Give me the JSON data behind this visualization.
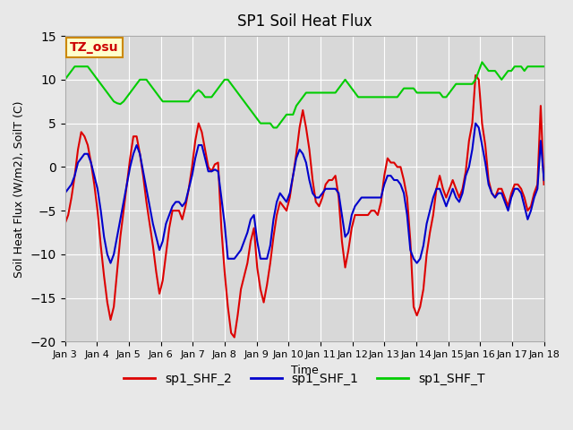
{
  "title": "SP1 Soil Heat Flux",
  "xlabel": "Time",
  "ylabel": "Soil Heat Flux (W/m2), SoilT (C)",
  "ylim": [
    -20,
    15
  ],
  "xlim": [
    0,
    15
  ],
  "bg_color": "#e8e8e8",
  "plot_bg_color": "#d8d8d8",
  "grid_color": "#ffffff",
  "tz_label": "TZ_osu",
  "tz_bg": "#ffffcc",
  "tz_border": "#cc8800",
  "tz_text_color": "#cc0000",
  "x_tick_labels": [
    "Jan 3",
    "Jan 4",
    "Jan 5",
    "Jan 6",
    "Jan 7",
    "Jan 8",
    "Jan 9",
    "Jan 10",
    "Jan 11",
    "Jan 12",
    "Jan 13",
    "Jan 14",
    "Jan 15",
    "Jan 16",
    "Jan 17",
    "Jan 18"
  ],
  "colors": {
    "sp1_SHF_2": "#dd0000",
    "sp1_SHF_1": "#0000cc",
    "sp1_SHF_T": "#00cc00"
  },
  "sp1_SHF_2_y": [
    -6.5,
    -5.5,
    -3.5,
    -1.0,
    2.0,
    4.0,
    3.5,
    2.5,
    0.5,
    -2.0,
    -5.0,
    -9.0,
    -12.5,
    -15.5,
    -17.5,
    -16.0,
    -12.0,
    -8.0,
    -5.0,
    -2.0,
    1.0,
    3.5,
    3.5,
    1.5,
    -1.0,
    -4.0,
    -6.5,
    -9.0,
    -12.0,
    -14.5,
    -13.0,
    -10.0,
    -7.0,
    -5.0,
    -5.0,
    -5.0,
    -6.0,
    -4.5,
    -2.5,
    0.0,
    3.0,
    5.0,
    4.0,
    2.0,
    0.0,
    -0.5,
    0.3,
    0.5,
    -7.0,
    -12.0,
    -16.0,
    -19.0,
    -19.5,
    -17.0,
    -14.0,
    -12.5,
    -11.0,
    -8.5,
    -7.0,
    -11.5,
    -14.0,
    -15.5,
    -13.5,
    -11.0,
    -8.0,
    -5.5,
    -4.0,
    -4.5,
    -5.0,
    -3.5,
    -1.0,
    1.5,
    4.5,
    6.5,
    4.5,
    2.0,
    -1.5,
    -4.0,
    -4.5,
    -3.5,
    -2.0,
    -1.5,
    -1.5,
    -1.0,
    -3.5,
    -8.5,
    -11.5,
    -9.5,
    -7.0,
    -5.5,
    -5.5,
    -5.5,
    -5.5,
    -5.5,
    -5.0,
    -5.0,
    -5.5,
    -4.0,
    -1.0,
    1.0,
    0.5,
    0.5,
    0.0,
    0.0,
    -1.5,
    -3.5,
    -8.5,
    -16.0,
    -17.0,
    -16.0,
    -14.0,
    -10.0,
    -7.5,
    -5.5,
    -2.5,
    -1.0,
    -2.5,
    -3.5,
    -2.5,
    -1.5,
    -2.5,
    -3.5,
    -2.5,
    -0.5,
    3.0,
    5.0,
    10.5,
    10.0,
    5.0,
    2.5,
    -1.5,
    -3.0,
    -3.5,
    -2.5,
    -2.5,
    -3.5,
    -4.5,
    -3.0,
    -2.0,
    -2.0,
    -2.5,
    -3.5,
    -5.0,
    -4.5,
    -3.0,
    -2.0,
    7.0,
    -2.0
  ],
  "sp1_SHF_1_y": [
    -3.0,
    -2.5,
    -2.0,
    -1.0,
    0.5,
    1.0,
    1.5,
    1.5,
    0.5,
    -1.0,
    -2.5,
    -5.0,
    -8.0,
    -10.0,
    -11.0,
    -10.0,
    -8.0,
    -6.0,
    -4.0,
    -2.0,
    0.0,
    1.5,
    2.5,
    1.5,
    -0.5,
    -2.5,
    -4.5,
    -6.5,
    -8.0,
    -9.5,
    -8.5,
    -6.5,
    -5.5,
    -4.5,
    -4.0,
    -4.0,
    -4.5,
    -4.0,
    -2.5,
    -1.0,
    1.0,
    2.5,
    2.5,
    1.0,
    -0.5,
    -0.5,
    -0.3,
    -0.5,
    -3.5,
    -6.5,
    -10.5,
    -10.5,
    -10.5,
    -10.0,
    -9.5,
    -8.5,
    -7.5,
    -6.0,
    -5.5,
    -8.5,
    -10.5,
    -10.5,
    -10.5,
    -9.0,
    -6.0,
    -4.0,
    -3.0,
    -3.5,
    -4.0,
    -3.0,
    -1.0,
    1.0,
    2.0,
    1.5,
    0.5,
    -1.5,
    -3.0,
    -3.5,
    -3.5,
    -3.0,
    -2.5,
    -2.5,
    -2.5,
    -2.5,
    -3.0,
    -5.5,
    -8.0,
    -7.5,
    -5.5,
    -4.5,
    -4.0,
    -3.5,
    -3.5,
    -3.5,
    -3.5,
    -3.5,
    -3.5,
    -3.5,
    -2.0,
    -1.0,
    -1.0,
    -1.5,
    -1.5,
    -2.0,
    -3.0,
    -5.5,
    -9.5,
    -10.5,
    -11.0,
    -10.5,
    -9.0,
    -6.5,
    -5.0,
    -3.5,
    -2.5,
    -2.5,
    -3.5,
    -4.5,
    -3.5,
    -2.5,
    -3.5,
    -4.0,
    -3.0,
    -1.0,
    0.0,
    2.0,
    5.0,
    4.5,
    2.5,
    0.5,
    -2.0,
    -3.0,
    -3.5,
    -3.0,
    -3.0,
    -4.0,
    -5.0,
    -3.5,
    -2.5,
    -2.5,
    -3.0,
    -4.5,
    -6.0,
    -5.0,
    -3.5,
    -2.5,
    3.0,
    -1.5
  ],
  "sp1_SHF_T_y": [
    10.0,
    10.5,
    11.0,
    11.5,
    11.5,
    11.5,
    11.5,
    11.5,
    11.0,
    10.5,
    10.0,
    9.5,
    9.0,
    8.5,
    8.0,
    7.5,
    7.3,
    7.2,
    7.5,
    8.0,
    8.5,
    9.0,
    9.5,
    10.0,
    10.0,
    10.0,
    9.5,
    9.0,
    8.5,
    8.0,
    7.5,
    7.5,
    7.5,
    7.5,
    7.5,
    7.5,
    7.5,
    7.5,
    7.5,
    8.0,
    8.5,
    8.8,
    8.5,
    8.0,
    8.0,
    8.0,
    8.5,
    9.0,
    9.5,
    10.0,
    10.0,
    9.5,
    9.0,
    8.5,
    8.0,
    7.5,
    7.0,
    6.5,
    6.0,
    5.5,
    5.0,
    5.0,
    5.0,
    5.0,
    4.5,
    4.5,
    5.0,
    5.5,
    6.0,
    6.0,
    6.0,
    7.0,
    7.5,
    8.0,
    8.5,
    8.5,
    8.5,
    8.5,
    8.5,
    8.5,
    8.5,
    8.5,
    8.5,
    8.5,
    9.0,
    9.5,
    10.0,
    9.5,
    9.0,
    8.5,
    8.0,
    8.0,
    8.0,
    8.0,
    8.0,
    8.0,
    8.0,
    8.0,
    8.0,
    8.0,
    8.0,
    8.0,
    8.0,
    8.5,
    9.0,
    9.0,
    9.0,
    9.0,
    8.5,
    8.5,
    8.5,
    8.5,
    8.5,
    8.5,
    8.5,
    8.5,
    8.0,
    8.0,
    8.5,
    9.0,
    9.5,
    9.5,
    9.5,
    9.5,
    9.5,
    9.5,
    10.0,
    11.0,
    12.0,
    11.5,
    11.0,
    11.0,
    11.0,
    10.5,
    10.0,
    10.5,
    11.0,
    11.0,
    11.5,
    11.5,
    11.5,
    11.0,
    11.5,
    11.5,
    11.5,
    11.5,
    11.5,
    11.5
  ]
}
